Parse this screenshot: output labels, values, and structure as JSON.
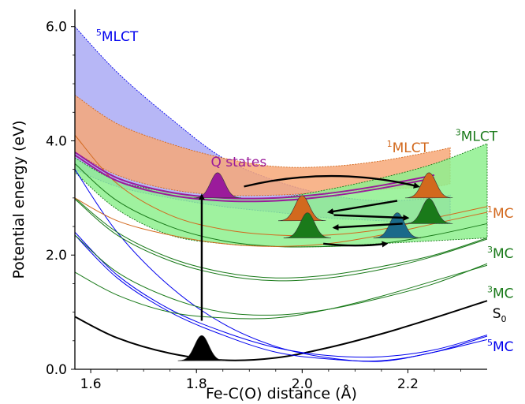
{
  "chart_data": {
    "type": "line",
    "title": "",
    "xlabel": "Fe-C(O) distance (Å)",
    "ylabel": "Potential energy (eV)",
    "xlim": [
      1.57,
      2.35
    ],
    "ylim": [
      0.0,
      6.3
    ],
    "x_ticks": [
      "1.6",
      "1.8",
      "2.0",
      "2.2"
    ],
    "x_tick_values": [
      1.6,
      1.8,
      2.0,
      2.2
    ],
    "y_ticks": [
      "0.0",
      "2.0",
      "4.0",
      "6.0"
    ],
    "y_tick_values": [
      0.0,
      2.0,
      4.0,
      6.0
    ],
    "grid": false,
    "colors": {
      "S0": "#000000",
      "MC5": "#0000ee",
      "MC3": "#1a7a1a",
      "MC1": "#d2691e",
      "MLCT5_fill": "#aaaaf4",
      "MLCT1_fill": "#f7a878",
      "MLCT3_fill": "#8ef08e",
      "Q": "#9b1b9b"
    },
    "bands": [
      {
        "name": "5MLCT",
        "label_base": "MLCT",
        "label_sup": "5",
        "color": "#0000ee",
        "fill": "#aaaaf4",
        "x": [
          1.57,
          1.65,
          1.75,
          1.85,
          1.95,
          2.05,
          2.15,
          2.25,
          2.28
        ],
        "upper": [
          6.0,
          5.2,
          4.4,
          3.7,
          3.3,
          3.05,
          2.95,
          3.0,
          3.05
        ],
        "lower": [
          3.5,
          3.2,
          3.0,
          2.85,
          2.75,
          2.65,
          2.6,
          2.55,
          2.55
        ]
      },
      {
        "name": "1MLCT",
        "label_base": "MLCT",
        "label_sup": "1",
        "color": "#d2691e",
        "fill": "#f7a878",
        "x": [
          1.57,
          1.65,
          1.75,
          1.85,
          1.95,
          2.05,
          2.15,
          2.25,
          2.28
        ],
        "upper": [
          4.8,
          4.3,
          3.95,
          3.7,
          3.55,
          3.55,
          3.65,
          3.82,
          3.88
        ],
        "lower": [
          3.8,
          3.4,
          3.15,
          3.05,
          3.05,
          3.1,
          3.15,
          3.2,
          3.25
        ]
      },
      {
        "name": "3MLCT",
        "label_base": "MLCT",
        "label_sup": "3",
        "color": "#1a7a1a",
        "fill": "#8ef08e",
        "x": [
          1.57,
          1.65,
          1.75,
          1.85,
          1.95,
          2.05,
          2.15,
          2.25,
          2.35
        ],
        "upper": [
          3.7,
          3.3,
          3.1,
          3.0,
          3.0,
          3.15,
          3.35,
          3.6,
          3.95
        ],
        "lower": [
          3.45,
          2.8,
          2.35,
          2.2,
          2.15,
          2.15,
          2.2,
          2.25,
          2.3
        ]
      }
    ],
    "series": [
      {
        "name": "S0",
        "label_base": "S",
        "label_sub": "0",
        "color": "#000000",
        "width": 2,
        "x": [
          1.57,
          1.65,
          1.75,
          1.85,
          1.95,
          2.05,
          2.15,
          2.25,
          2.35
        ],
        "y": [
          0.92,
          0.55,
          0.28,
          0.16,
          0.2,
          0.38,
          0.62,
          0.9,
          1.2
        ]
      },
      {
        "name": "5MC-a",
        "color": "#0000ee",
        "width": 1,
        "x": [
          1.57,
          1.65,
          1.75,
          1.85,
          1.95,
          2.05,
          2.15,
          2.25,
          2.35
        ],
        "y": [
          3.5,
          2.4,
          1.45,
          0.8,
          0.4,
          0.2,
          0.14,
          0.3,
          0.52
        ]
      },
      {
        "name": "5MC-b",
        "color": "#0000ee",
        "width": 1,
        "x": [
          1.57,
          1.65,
          1.75,
          1.85,
          1.95,
          2.05,
          2.15,
          2.25,
          2.35
        ],
        "y": [
          2.35,
          1.6,
          1.0,
          0.6,
          0.3,
          0.18,
          0.15,
          0.3,
          0.58
        ]
      },
      {
        "name": "5MC-c",
        "color": "#0000ee",
        "width": 1,
        "x": [
          1.57,
          1.65,
          1.75,
          1.85,
          1.95,
          2.05,
          2.15,
          2.25,
          2.35
        ],
        "y": [
          2.4,
          1.65,
          1.05,
          0.66,
          0.38,
          0.24,
          0.22,
          0.34,
          0.6
        ]
      },
      {
        "name": "3MC-a",
        "color": "#1a7a1a",
        "width": 1,
        "x": [
          1.57,
          1.65,
          1.75,
          1.85,
          1.95,
          2.05,
          2.15,
          2.25,
          2.35
        ],
        "y": [
          3.0,
          2.4,
          1.95,
          1.7,
          1.6,
          1.65,
          1.8,
          2.0,
          2.3
        ]
      },
      {
        "name": "3MC-b",
        "color": "#1a7a1a",
        "width": 1,
        "x": [
          1.57,
          1.65,
          1.75,
          1.85,
          1.95,
          2.05,
          2.15,
          2.25,
          2.35
        ],
        "y": [
          2.98,
          2.35,
          1.9,
          1.65,
          1.55,
          1.6,
          1.75,
          1.98,
          2.28
        ]
      },
      {
        "name": "3MC-c",
        "color": "#1a7a1a",
        "width": 1,
        "x": [
          1.57,
          1.65,
          1.75,
          1.85,
          1.95,
          2.05,
          2.15,
          2.25,
          2.35
        ],
        "y": [
          2.35,
          1.7,
          1.25,
          1.0,
          0.95,
          1.05,
          1.25,
          1.5,
          1.85
        ]
      },
      {
        "name": "3MC-d",
        "color": "#1a7a1a",
        "width": 1,
        "x": [
          1.57,
          1.65,
          1.75,
          1.85,
          1.95,
          2.05,
          2.15,
          2.25,
          2.35
        ],
        "y": [
          1.7,
          1.3,
          1.0,
          0.9,
          0.9,
          1.05,
          1.28,
          1.55,
          1.82
        ]
      },
      {
        "name": "3MC-e",
        "color": "#1a7a1a",
        "width": 1,
        "x": [
          1.57,
          1.65,
          1.75,
          1.85,
          1.95,
          2.05,
          2.15,
          2.25,
          2.35
        ],
        "y": [
          3.6,
          2.95,
          2.5,
          2.25,
          2.15,
          2.15,
          2.2,
          2.35,
          2.55
        ]
      },
      {
        "name": "1MC-a",
        "color": "#d2691e",
        "width": 1,
        "x": [
          1.57,
          1.65,
          1.75,
          1.85,
          1.95,
          2.05,
          2.15,
          2.25,
          2.35
        ],
        "y": [
          4.1,
          3.25,
          2.7,
          2.45,
          2.35,
          2.35,
          2.45,
          2.65,
          2.85
        ]
      },
      {
        "name": "1MC-b",
        "color": "#d2691e",
        "width": 1,
        "x": [
          1.57,
          1.65,
          1.75,
          1.85,
          1.95,
          2.05,
          2.15,
          2.25,
          2.35
        ],
        "y": [
          3.0,
          2.6,
          2.35,
          2.2,
          2.15,
          2.2,
          2.35,
          2.55,
          2.75
        ]
      },
      {
        "name": "Q-a",
        "color": "#9b1b9b",
        "width": 2,
        "x": [
          1.57,
          1.65,
          1.75,
          1.85,
          1.95,
          2.05,
          2.15,
          2.25
        ],
        "y": [
          3.8,
          3.35,
          3.1,
          3.0,
          3.0,
          3.08,
          3.22,
          3.4
        ]
      },
      {
        "name": "Q-b",
        "color": "#9b1b9b",
        "width": 2,
        "x": [
          1.57,
          1.65,
          1.75,
          1.85,
          1.95,
          2.05,
          2.15,
          2.25
        ],
        "y": [
          3.75,
          3.3,
          3.05,
          2.95,
          2.95,
          3.03,
          3.17,
          3.35
        ]
      }
    ],
    "wavepackets": [
      {
        "x": 1.81,
        "y": 0.15,
        "fill": "#000000"
      },
      {
        "x": 1.84,
        "y": 3.0,
        "fill": "#9b1b9b"
      },
      {
        "x": 2.24,
        "y": 3.0,
        "fill": "#d2691e"
      },
      {
        "x": 2.0,
        "y": 2.6,
        "fill": "#d2691e"
      },
      {
        "x": 2.24,
        "y": 2.55,
        "fill": "#1a7a1a"
      },
      {
        "x": 2.01,
        "y": 2.3,
        "fill": "#1a7a1a"
      },
      {
        "x": 2.18,
        "y": 2.3,
        "fill": "#1a6a8a"
      }
    ],
    "transitions": [
      {
        "from": [
          1.81,
          0.85
        ],
        "to": [
          1.81,
          3.05
        ],
        "curve": 0
      },
      {
        "from": [
          1.89,
          3.2
        ],
        "to": [
          2.22,
          3.2
        ],
        "curve": 0.12
      },
      {
        "from": [
          2.18,
          2.95
        ],
        "to": [
          2.05,
          2.75
        ],
        "curve": 0
      },
      {
        "from": [
          2.06,
          2.7
        ],
        "to": [
          2.2,
          2.65
        ],
        "curve": 0
      },
      {
        "from": [
          2.19,
          2.55
        ],
        "to": [
          2.06,
          2.48
        ],
        "curve": 0
      },
      {
        "from": [
          2.04,
          2.2
        ],
        "to": [
          2.16,
          2.2
        ],
        "curve": -0.06
      }
    ],
    "annotations": [
      {
        "text": "Q states",
        "x": 1.88,
        "y": 3.55,
        "color": "#9b1b9b"
      }
    ],
    "right_labels": [
      {
        "base": "MLCT",
        "sup": "3",
        "color": "#1a7a1a",
        "pos": [
          2.29,
          4.0
        ]
      },
      {
        "base": "MLCT",
        "sup": "1",
        "color": "#d2691e",
        "pos": [
          2.16,
          3.8
        ]
      },
      {
        "base": "MLCT",
        "sup": "5",
        "color": "#0000ee",
        "pos": [
          1.61,
          5.75
        ]
      },
      {
        "base": "MC",
        "sup": "1",
        "color": "#d2691e",
        "pos": [
          2.35,
          2.65
        ]
      },
      {
        "base": "MC",
        "sup": "3",
        "color": "#1a7a1a",
        "pos": [
          2.35,
          1.95
        ]
      },
      {
        "base": "MC",
        "sup": "3",
        "color": "#1a7a1a",
        "pos": [
          2.35,
          1.25
        ]
      },
      {
        "base": "S",
        "sub": "0",
        "color": "#000000",
        "pos": [
          2.36,
          0.9
        ]
      },
      {
        "base": "MC",
        "sup": "5",
        "color": "#0000ee",
        "pos": [
          2.35,
          0.32
        ]
      }
    ]
  }
}
